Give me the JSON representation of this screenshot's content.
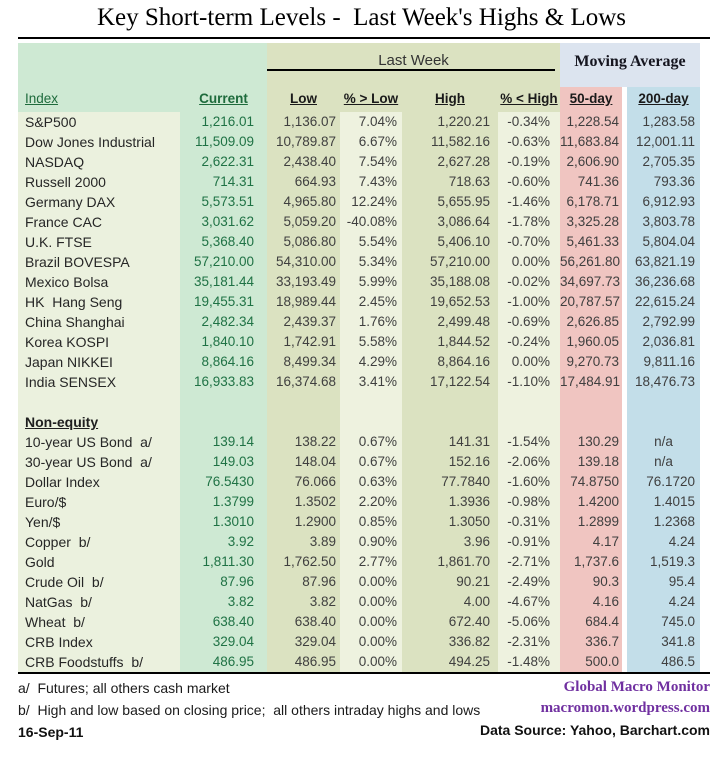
{
  "title": "Key Short-term Levels -  Last Week's Highs & Lows",
  "colors": {
    "index_column_bg": "#ebf1de",
    "current_column_bg": "#cee9d3",
    "current_text_green": "#1f7245",
    "last_week_band_bg": "#dbe2c1",
    "percent_column_bg": "#eef2df",
    "moving_average_band_bg": "#dce4ef",
    "ma50_column_bg": "#f0c5c1",
    "ma200_column_bg": "#c3dee9",
    "brand_purple": "#7030a0"
  },
  "chart_data": {
    "type": "table",
    "title": "Key Short-term Levels -  Last Week's Highs & Lows",
    "column_groups": [
      "Last Week",
      "Moving Average"
    ],
    "columns": [
      "Index",
      "Current",
      "Low",
      "% > Low",
      "High",
      "% < High",
      "50-day",
      "200-day"
    ],
    "rows": [
      {
        "type": "data",
        "label": "S&P500",
        "values": [
          "1,216.01",
          "1,136.07",
          "7.04%",
          "1,220.21",
          "-0.34%",
          "1,228.54",
          "1,283.58"
        ]
      },
      {
        "type": "data",
        "label": "Dow Jones Industrial",
        "values": [
          "11,509.09",
          "10,789.87",
          "6.67%",
          "11,582.16",
          "-0.63%",
          "11,683.84",
          "12,001.11"
        ]
      },
      {
        "type": "data",
        "label": "NASDAQ",
        "values": [
          "2,622.31",
          "2,438.40",
          "7.54%",
          "2,627.28",
          "-0.19%",
          "2,606.90",
          "2,705.35"
        ]
      },
      {
        "type": "data",
        "label": "Russell 2000",
        "values": [
          "714.31",
          "664.93",
          "7.43%",
          "718.63",
          "-0.60%",
          "741.36",
          "793.36"
        ]
      },
      {
        "type": "data",
        "label": "Germany DAX",
        "values": [
          "5,573.51",
          "4,965.80",
          "12.24%",
          "5,655.95",
          "-1.46%",
          "6,178.71",
          "6,912.93"
        ]
      },
      {
        "type": "data",
        "label": "France CAC",
        "values": [
          "3,031.62",
          "5,059.20",
          "-40.08%",
          "3,086.64",
          "-1.78%",
          "3,325.28",
          "3,803.78"
        ]
      },
      {
        "type": "data",
        "label": "U.K. FTSE",
        "values": [
          "5,368.40",
          "5,086.80",
          "5.54%",
          "5,406.10",
          "-0.70%",
          "5,461.33",
          "5,804.04"
        ]
      },
      {
        "type": "data",
        "label": "Brazil BOVESPA",
        "values": [
          "57,210.00",
          "54,310.00",
          "5.34%",
          "57,210.00",
          "0.00%",
          "56,261.80",
          "63,821.19"
        ]
      },
      {
        "type": "data",
        "label": "Mexico Bolsa",
        "values": [
          "35,181.44",
          "33,193.49",
          "5.99%",
          "35,188.08",
          "-0.02%",
          "34,697.73",
          "36,236.68"
        ]
      },
      {
        "type": "data",
        "label": "HK  Hang Seng",
        "values": [
          "19,455.31",
          "18,989.44",
          "2.45%",
          "19,652.53",
          "-1.00%",
          "20,787.57",
          "22,615.24"
        ]
      },
      {
        "type": "data",
        "label": "China Shanghai",
        "values": [
          "2,482.34",
          "2,439.37",
          "1.76%",
          "2,499.48",
          "-0.69%",
          "2,626.85",
          "2,792.99"
        ]
      },
      {
        "type": "data",
        "label": "Korea KOSPI",
        "values": [
          "1,840.10",
          "1,742.91",
          "5.58%",
          "1,844.52",
          "-0.24%",
          "1,960.05",
          "2,036.81"
        ]
      },
      {
        "type": "data",
        "label": "Japan NIKKEI",
        "values": [
          "8,864.16",
          "8,499.34",
          "4.29%",
          "8,864.16",
          "0.00%",
          "9,270.73",
          "9,811.16"
        ]
      },
      {
        "type": "data",
        "label": "India SENSEX",
        "values": [
          "16,933.83",
          "16,374.68",
          "3.41%",
          "17,122.54",
          "-1.10%",
          "17,484.91",
          "18,476.73"
        ]
      },
      {
        "type": "blank"
      },
      {
        "type": "section",
        "label": "Non-equity"
      },
      {
        "type": "data",
        "label": "10-year US Bond  a/",
        "values": [
          "139.14",
          "138.22",
          "0.67%",
          "141.31",
          "-1.54%",
          "130.29",
          "n/a"
        ]
      },
      {
        "type": "data",
        "label": "30-year US Bond  a/",
        "values": [
          "149.03",
          "148.04",
          "0.67%",
          "152.16",
          "-2.06%",
          "139.18",
          "n/a"
        ]
      },
      {
        "type": "data",
        "label": "Dollar Index",
        "values": [
          "76.5430",
          "76.066",
          "0.63%",
          "77.7840",
          "-1.60%",
          "74.8750",
          "76.1720"
        ]
      },
      {
        "type": "data",
        "label": "Euro/$",
        "values": [
          "1.3799",
          "1.3502",
          "2.20%",
          "1.3936",
          "-0.98%",
          "1.4200",
          "1.4015"
        ]
      },
      {
        "type": "data",
        "label": "Yen/$",
        "values": [
          "1.3010",
          "1.2900",
          "0.85%",
          "1.3050",
          "-0.31%",
          "1.2899",
          "1.2368"
        ]
      },
      {
        "type": "data",
        "label": "Copper  b/",
        "values": [
          "3.92",
          "3.89",
          "0.90%",
          "3.96",
          "-0.91%",
          "4.17",
          "4.24"
        ]
      },
      {
        "type": "data",
        "label": "Gold",
        "values": [
          "1,811.30",
          "1,762.50",
          "2.77%",
          "1,861.70",
          "-2.71%",
          "1,737.6",
          "1,519.3"
        ]
      },
      {
        "type": "data",
        "label": "Crude Oil  b/",
        "values": [
          "87.96",
          "87.96",
          "0.00%",
          "90.21",
          "-2.49%",
          "90.3",
          "95.4"
        ]
      },
      {
        "type": "data",
        "label": "NatGas  b/",
        "values": [
          "3.82",
          "3.82",
          "0.00%",
          "4.00",
          "-4.67%",
          "4.16",
          "4.24"
        ]
      },
      {
        "type": "data",
        "label": "Wheat  b/",
        "values": [
          "638.40",
          "638.40",
          "0.00%",
          "672.40",
          "-5.06%",
          "684.4",
          "745.0"
        ]
      },
      {
        "type": "data",
        "label": "CRB Index",
        "values": [
          "329.04",
          "329.04",
          "0.00%",
          "336.82",
          "-2.31%",
          "336.7",
          "341.8"
        ]
      },
      {
        "type": "data",
        "label": "CRB Foodstuffs  b/",
        "values": [
          "486.95",
          "486.95",
          "0.00%",
          "494.25",
          "-1.48%",
          "500.0",
          "486.5"
        ]
      }
    ]
  },
  "footer": {
    "note_a": "a/  Futures; all others cash market",
    "note_b": "b/  High and low based on closing price;  all others intraday highs and lows",
    "date": "16-Sep-11",
    "brand_line1": "Global Macro Monitor",
    "brand_line2": "macromon.wordpress.com",
    "source": "Data Source: Yahoo, Barchart.com"
  }
}
